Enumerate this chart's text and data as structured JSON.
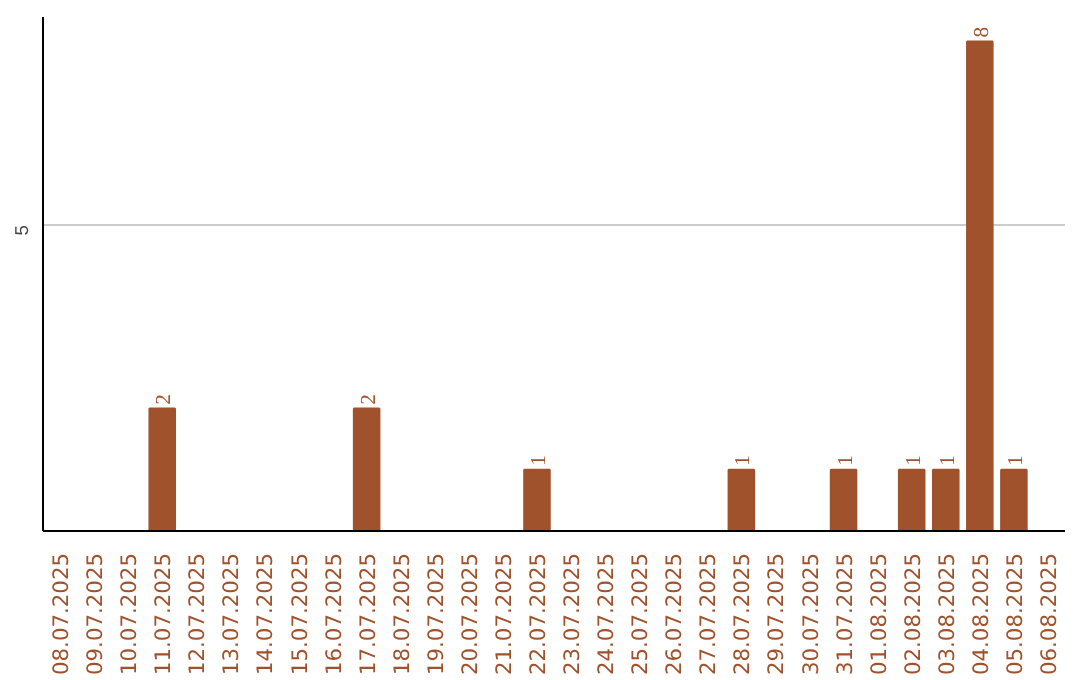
{
  "chart_data": {
    "type": "bar",
    "categories": [
      "08.07.2025",
      "09.07.2025",
      "10.07.2025",
      "11.07.2025",
      "12.07.2025",
      "13.07.2025",
      "14.07.2025",
      "15.07.2025",
      "16.07.2025",
      "17.07.2025",
      "18.07.2025",
      "19.07.2025",
      "20.07.2025",
      "21.07.2025",
      "22.07.2025",
      "23.07.2025",
      "24.07.2025",
      "25.07.2025",
      "26.07.2025",
      "27.07.2025",
      "28.07.2025",
      "29.07.2025",
      "30.07.2025",
      "31.07.2025",
      "01.08.2025",
      "02.08.2025",
      "03.08.2025",
      "04.08.2025",
      "05.08.2025",
      "06.08.2025"
    ],
    "values": [
      null,
      null,
      null,
      2,
      null,
      null,
      null,
      null,
      null,
      2,
      null,
      null,
      null,
      null,
      1,
      null,
      null,
      null,
      null,
      null,
      1,
      null,
      null,
      1,
      null,
      1,
      1,
      8,
      1,
      null
    ],
    "color": "#a0522d",
    "ylim": [
      0,
      8.4
    ],
    "yticks": [
      5
    ],
    "grid": "y",
    "data_labels": true
  }
}
